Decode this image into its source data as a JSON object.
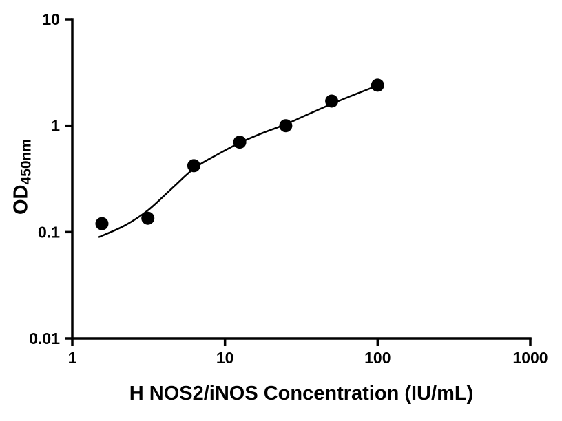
{
  "figure": {
    "xlabel": "H NOS2/iNOS Concentration (IU/mL)",
    "ylabel_main": "OD",
    "ylabel_sub": "450nm"
  },
  "chart_data": {
    "type": "scatter",
    "title": "",
    "xlabel": "H NOS2/iNOS Concentration (IU/mL)",
    "ylabel": "OD450nm",
    "xscale": "log",
    "yscale": "log",
    "xlim": [
      1,
      1000
    ],
    "ylim": [
      0.01,
      10
    ],
    "x_ticks": [
      1,
      10,
      100,
      1000
    ],
    "x_tick_labels": [
      "1",
      "10",
      "100",
      "1000"
    ],
    "y_ticks": [
      0.01,
      0.1,
      1,
      10
    ],
    "y_tick_labels": [
      "0.01",
      "0.1",
      "1",
      "10"
    ],
    "grid": false,
    "legend": false,
    "background_color": "#ffffff",
    "axis_color": "#000000",
    "series": [
      {
        "name": "standard-points",
        "type": "scatter",
        "marker": "circle",
        "color": "#000000",
        "x": [
          1.5625,
          3.125,
          6.25,
          12.5,
          25,
          50,
          100
        ],
        "y": [
          0.12,
          0.135,
          0.42,
          0.7,
          1.0,
          1.7,
          2.4
        ]
      },
      {
        "name": "fit-curve",
        "type": "line",
        "color": "#000000",
        "x": [
          1.5,
          2.2,
          3.125,
          4.4,
          6.25,
          8.8,
          12.5,
          17.7,
          25,
          35,
          50,
          70,
          100
        ],
        "y": [
          0.09,
          0.115,
          0.16,
          0.25,
          0.395,
          0.53,
          0.69,
          0.855,
          1.03,
          1.28,
          1.6,
          1.95,
          2.38
        ]
      }
    ]
  }
}
